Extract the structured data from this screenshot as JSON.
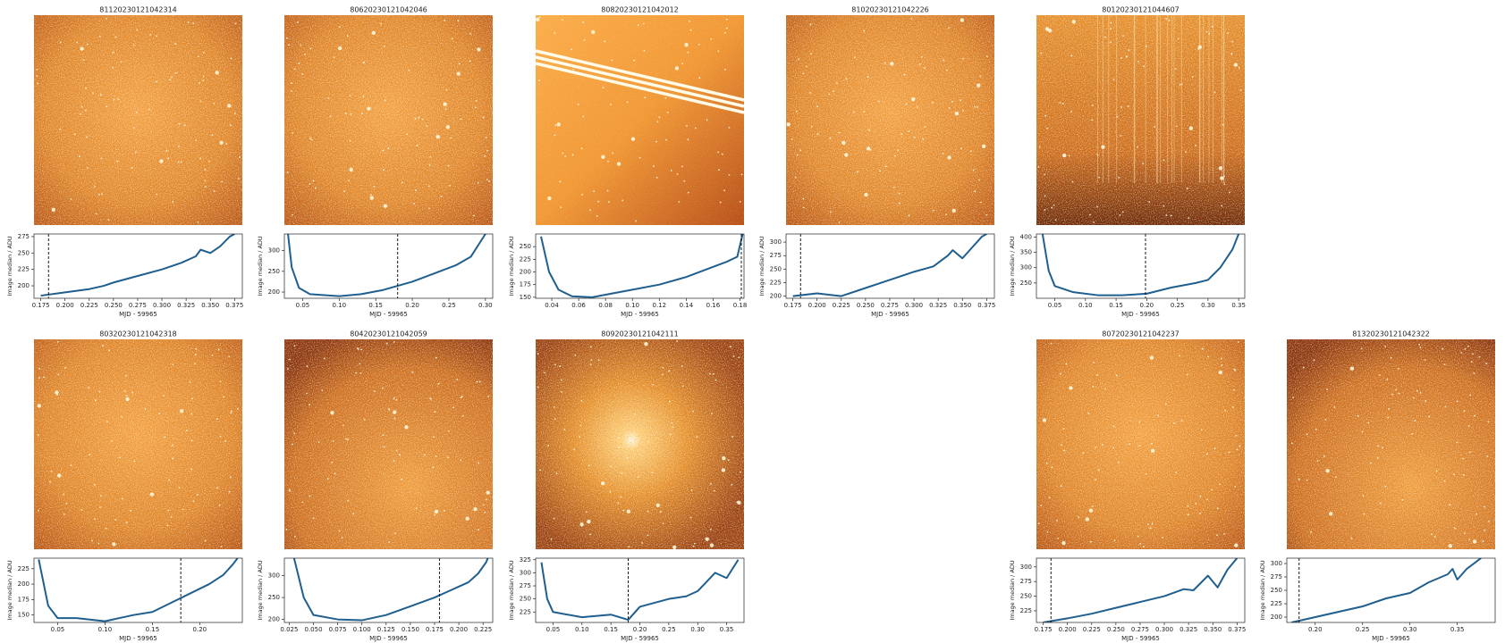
{
  "chart_data": [
    {
      "type": "line",
      "title": "81120230121042314",
      "xlabel": "MJD - 59965",
      "ylabel": "Image median / ADU",
      "color": "#1f5f8f",
      "x": [
        0.175,
        0.2,
        0.225,
        0.24,
        0.25,
        0.275,
        0.3,
        0.32,
        0.335,
        0.34,
        0.35,
        0.36,
        0.37,
        0.375
      ],
      "values": [
        185,
        190,
        195,
        200,
        205,
        215,
        225,
        235,
        245,
        255,
        250,
        260,
        275,
        279
      ],
      "vline": 0.183,
      "xlim": [
        0.168,
        0.383
      ],
      "ylim": [
        181,
        279
      ],
      "xticks": [
        0.175,
        {
          "value": 0.2,
          "label": "0.200"
        },
        0.225,
        {
          "value": 0.25,
          "label": "0.250"
        },
        0.275,
        {
          "value": 0.3,
          "label": "0.300"
        },
        0.325,
        {
          "value": 0.35,
          "label": "0.350"
        },
        0.375
      ],
      "yticks": [
        200,
        225,
        250,
        275
      ]
    },
    {
      "type": "line",
      "title": "80620230121042046",
      "xlabel": "MJD - 59965",
      "ylabel": "Image median / ADU",
      "color": "#1f5f8f",
      "x": [
        0.03,
        0.035,
        0.045,
        0.06,
        0.1,
        0.13,
        0.16,
        0.18,
        0.2,
        0.23,
        0.26,
        0.28,
        0.3
      ],
      "values": [
        340,
        260,
        210,
        195,
        190,
        195,
        205,
        215,
        225,
        245,
        265,
        285,
        340
      ],
      "vline": 0.18,
      "xlim": [
        0.025,
        0.31
      ],
      "ylim": [
        185,
        340
      ],
      "xticks": [
        0.05,
        {
          "value": 0.1,
          "label": "0.10"
        },
        0.15,
        {
          "value": 0.2,
          "label": "0.20"
        },
        0.25,
        {
          "value": 0.3,
          "label": "0.30"
        }
      ],
      "yticks": [
        200,
        250,
        300
      ]
    },
    {
      "type": "line",
      "title": "80820230121042012",
      "xlabel": "MJD - 59965",
      "ylabel": "Image median / ADU",
      "color": "#1f5f8f",
      "x": [
        0.032,
        0.038,
        0.045,
        0.055,
        0.07,
        0.08,
        0.1,
        0.12,
        0.14,
        0.16,
        0.17,
        0.178,
        0.182
      ],
      "values": [
        270,
        200,
        165,
        152,
        150,
        155,
        165,
        175,
        190,
        210,
        220,
        230,
        275
      ],
      "vline": 0.181,
      "xlim": [
        0.028,
        0.183
      ],
      "ylim": [
        148,
        275
      ],
      "xticks": [
        0.04,
        0.06,
        0.08,
        {
          "value": 0.1,
          "label": "0.10"
        },
        0.12,
        0.14,
        0.16,
        0.18
      ],
      "yticks": [
        150,
        175,
        200,
        225,
        250
      ]
    },
    {
      "type": "line",
      "title": "81020230121042226",
      "xlabel": "MJD - 59965",
      "ylabel": "Image median / ADU",
      "color": "#1f5f8f",
      "x": [
        0.175,
        0.2,
        0.225,
        0.25,
        0.275,
        0.3,
        0.32,
        0.335,
        0.34,
        0.35,
        0.36,
        0.37,
        0.375
      ],
      "values": [
        200,
        205,
        200,
        215,
        230,
        245,
        255,
        275,
        285,
        270,
        290,
        310,
        315
      ],
      "vline": 0.183,
      "xlim": [
        0.168,
        0.383
      ],
      "ylim": [
        196,
        315
      ],
      "xticks": [
        0.175,
        {
          "value": 0.2,
          "label": "0.200"
        },
        0.225,
        {
          "value": 0.25,
          "label": "0.250"
        },
        0.275,
        {
          "value": 0.3,
          "label": "0.300"
        },
        0.325,
        {
          "value": 0.35,
          "label": "0.350"
        },
        0.375
      ],
      "yticks": [
        200,
        225,
        250,
        275,
        300
      ]
    },
    {
      "type": "line",
      "title": "80120230121044607",
      "xlabel": "MJD - 59965",
      "ylabel": "Image median / ADU",
      "color": "#1f5f8f",
      "x": [
        0.03,
        0.04,
        0.05,
        0.08,
        0.12,
        0.16,
        0.2,
        0.24,
        0.28,
        0.3,
        0.32,
        0.34,
        0.35
      ],
      "values": [
        410,
        290,
        240,
        220,
        210,
        210,
        215,
        235,
        250,
        260,
        300,
        360,
        410
      ],
      "vline": 0.198,
      "xlim": [
        0.02,
        0.36
      ],
      "ylim": [
        200,
        410
      ],
      "xticks": [
        0.05,
        {
          "value": 0.1,
          "label": "0.10"
        },
        0.15,
        {
          "value": 0.2,
          "label": "0.20"
        },
        0.25,
        {
          "value": 0.3,
          "label": "0.30"
        },
        0.35
      ],
      "yticks": [
        250,
        300,
        350,
        400
      ]
    },
    {
      "type": "line",
      "title": "80320230121042318",
      "xlabel": "MJD - 59965",
      "ylabel": "Image median / ADU",
      "color": "#1f5f8f",
      "x": [
        0.03,
        0.04,
        0.05,
        0.07,
        0.1,
        0.13,
        0.15,
        0.17,
        0.19,
        0.21,
        0.225,
        0.235,
        0.24
      ],
      "values": [
        240,
        165,
        145,
        145,
        140,
        150,
        155,
        170,
        185,
        200,
        215,
        232,
        242
      ],
      "vline": 0.18,
      "xlim": [
        0.025,
        0.245
      ],
      "ylim": [
        138,
        242
      ],
      "xticks": [
        0.05,
        {
          "value": 0.1,
          "label": "0.10"
        },
        0.15,
        {
          "value": 0.2,
          "label": "0.20"
        }
      ],
      "yticks": [
        150,
        175,
        200,
        225
      ]
    },
    {
      "type": "line",
      "title": "80420230121042059",
      "xlabel": "MJD - 59965",
      "ylabel": "Image median / ADU",
      "color": "#1f5f8f",
      "x": [
        0.03,
        0.04,
        0.05,
        0.075,
        0.1,
        0.125,
        0.15,
        0.175,
        0.19,
        0.21,
        0.22,
        0.228,
        0.23
      ],
      "values": [
        340,
        250,
        210,
        200,
        198,
        210,
        230,
        250,
        265,
        285,
        305,
        330,
        340
      ],
      "vline": 0.18,
      "xlim": [
        0.02,
        0.235
      ],
      "ylim": [
        193,
        340
      ],
      "xticks": [
        0.025,
        {
          "value": 0.05,
          "label": "0.050"
        },
        0.075,
        {
          "value": 0.1,
          "label": "0.100"
        },
        0.125,
        {
          "value": 0.15,
          "label": "0.150"
        },
        0.175,
        {
          "value": 0.2,
          "label": "0.200"
        },
        0.225
      ],
      "yticks": [
        200,
        250,
        300
      ]
    },
    {
      "type": "line",
      "title": "80920230121042111",
      "xlabel": "MJD - 59965",
      "ylabel": "Image median / ADU",
      "color": "#1f5f8f",
      "x": [
        0.03,
        0.04,
        0.05,
        0.1,
        0.15,
        0.18,
        0.2,
        0.25,
        0.28,
        0.3,
        0.33,
        0.35,
        0.37
      ],
      "values": [
        320,
        250,
        225,
        215,
        220,
        210,
        235,
        250,
        255,
        265,
        300,
        290,
        325
      ],
      "vline": 0.18,
      "xlim": [
        0.02,
        0.38
      ],
      "ylim": [
        205,
        328
      ],
      "xticks": [
        0.05,
        {
          "value": 0.1,
          "label": "0.10"
        },
        0.15,
        {
          "value": 0.2,
          "label": "0.20"
        },
        0.25,
        {
          "value": 0.3,
          "label": "0.30"
        },
        0.35
      ],
      "yticks": [
        225,
        250,
        275,
        300,
        325
      ]
    },
    {
      "type": "line",
      "title": "80720230121042237",
      "xlabel": "MJD - 59965",
      "ylabel": "Image median / ADU",
      "color": "#1f5f8f",
      "x": [
        0.175,
        0.2,
        0.225,
        0.25,
        0.275,
        0.3,
        0.32,
        0.33,
        0.345,
        0.355,
        0.365,
        0.375
      ],
      "values": [
        205,
        212,
        220,
        230,
        240,
        250,
        262,
        260,
        285,
        265,
        295,
        315
      ],
      "vline": 0.183,
      "xlim": [
        0.168,
        0.383
      ],
      "ylim": [
        205,
        315
      ],
      "xticks": [
        0.175,
        {
          "value": 0.2,
          "label": "0.200"
        },
        0.225,
        {
          "value": 0.25,
          "label": "0.250"
        },
        0.275,
        {
          "value": 0.3,
          "label": "0.300"
        },
        0.325,
        {
          "value": 0.35,
          "label": "0.350"
        },
        0.375
      ],
      "yticks": [
        225,
        250,
        275,
        300
      ]
    },
    {
      "type": "line",
      "title": "81320230121042322",
      "xlabel": "MJD - 59965",
      "ylabel": "Image median / ADU",
      "color": "#1f5f8f",
      "x": [
        0.175,
        0.2,
        0.225,
        0.25,
        0.275,
        0.3,
        0.32,
        0.34,
        0.345,
        0.35,
        0.36,
        0.375
      ],
      "values": [
        190,
        200,
        210,
        220,
        235,
        245,
        265,
        280,
        290,
        270,
        290,
        310
      ],
      "vline": 0.183,
      "xlim": [
        0.17,
        0.39
      ],
      "ylim": [
        190,
        310
      ],
      "xticks": [
        {
          "value": 0.2,
          "label": "0.20"
        },
        0.25,
        {
          "value": 0.3,
          "label": "0.30"
        },
        0.35
      ],
      "yticks": [
        200,
        225,
        250,
        275,
        300
      ]
    }
  ]
}
